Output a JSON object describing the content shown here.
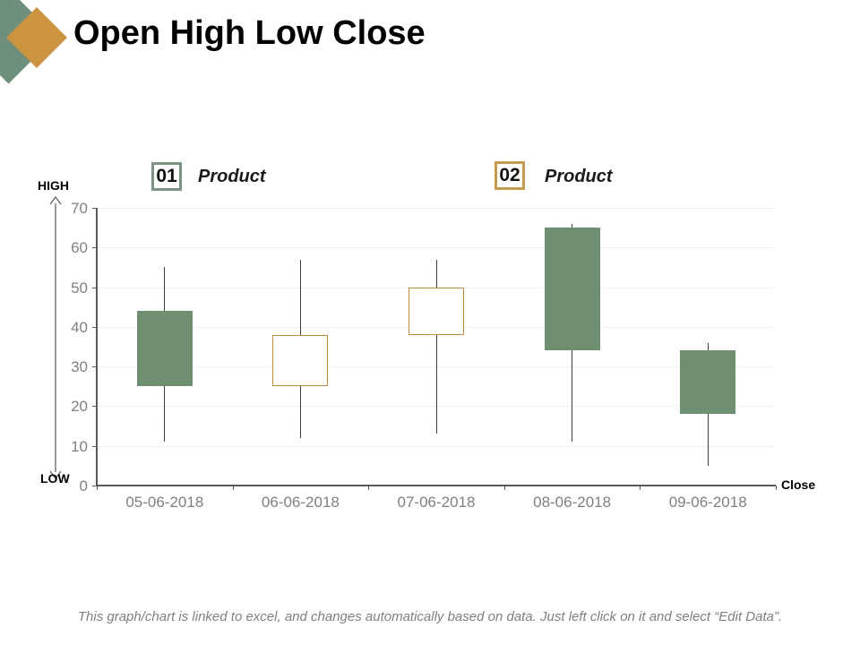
{
  "slide": {
    "title": "Open High Low Close",
    "footer": "This graph/chart is linked to excel, and changes automatically based on data. Just left click on it and select “Edit Data”."
  },
  "colors": {
    "logo_green": "#6F8F7D",
    "logo_orange": "#CC9440",
    "decrease_fill": "#6E9071",
    "increase_border": "#BF8F3F",
    "axis": "#595959",
    "grid": "#EFEFEF",
    "tick_label": "#7F7F7F",
    "wick": "#404040"
  },
  "legend": [
    {
      "number": "01",
      "label": "Product",
      "border_color": "#7D9184"
    },
    {
      "number": "02",
      "label": "Product",
      "border_color": "#C49A4E"
    }
  ],
  "axis_captions": {
    "high": "HIGH",
    "low": "LOW",
    "close": "Close"
  },
  "chart_data": {
    "type": "candlestick",
    "title": "Open High Low Close",
    "categories": [
      "05-06-2018",
      "06-06-2018",
      "07-06-2018",
      "08-06-2018",
      "09-06-2018"
    ],
    "points": [
      {
        "date": "05-06-2018",
        "open": 44,
        "high": 55,
        "low": 11,
        "close": 25,
        "direction": "decrease"
      },
      {
        "date": "06-06-2018",
        "open": 25,
        "high": 57,
        "low": 12,
        "close": 38,
        "direction": "increase"
      },
      {
        "date": "07-06-2018",
        "open": 38,
        "high": 57,
        "low": 13,
        "close": 50,
        "direction": "increase"
      },
      {
        "date": "08-06-2018",
        "open": 65,
        "high": 66,
        "low": 11,
        "close": 34,
        "direction": "decrease"
      },
      {
        "date": "09-06-2018",
        "open": 34,
        "high": 36,
        "low": 5,
        "close": 18,
        "direction": "decrease"
      }
    ],
    "ylim": [
      0,
      70
    ],
    "ytick_step": 10,
    "yticks": [
      0,
      10,
      20,
      30,
      40,
      50,
      60,
      70
    ],
    "grid": true,
    "increase_style": {
      "fill": "#FFFFFF",
      "border": "#BF8F3F"
    },
    "decrease_style": {
      "fill": "#6E9071"
    }
  }
}
